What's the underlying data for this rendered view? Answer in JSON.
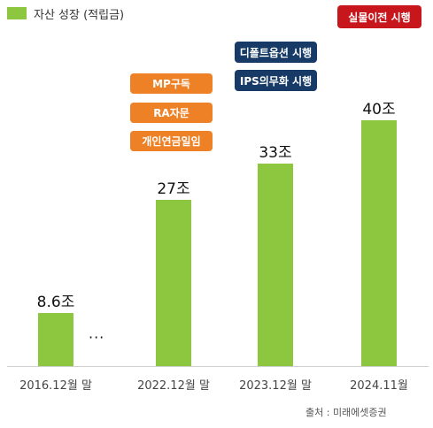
{
  "legend": {
    "label": "자산 성장 (적립금)",
    "color": "#8dc63f"
  },
  "tags": {
    "mp": "MP구독",
    "ra": "RA자문",
    "personal_pension": "개인연금일임",
    "default_option": "디폴트옵션 시행",
    "ips": "IPS의무화 시행",
    "actual_transfer": "실물이전 시행"
  },
  "ellipsis": "···",
  "source": "출처 : 미래에셋증권",
  "colors": {
    "bar": "#8dc63f",
    "orange": "#ee8125",
    "navy": "#173b66",
    "red": "#c8161d"
  },
  "chart_data": {
    "type": "bar",
    "categories": [
      "2016.12월 말",
      "2022.12월 말",
      "2023.12월 말",
      "2024.11월"
    ],
    "values": [
      8.6,
      27,
      33,
      40
    ],
    "value_labels": [
      "8.6조",
      "27조",
      "33조",
      "40조"
    ],
    "ylim": [
      0,
      45
    ],
    "xlabel": "",
    "ylabel": "",
    "grid": false
  }
}
